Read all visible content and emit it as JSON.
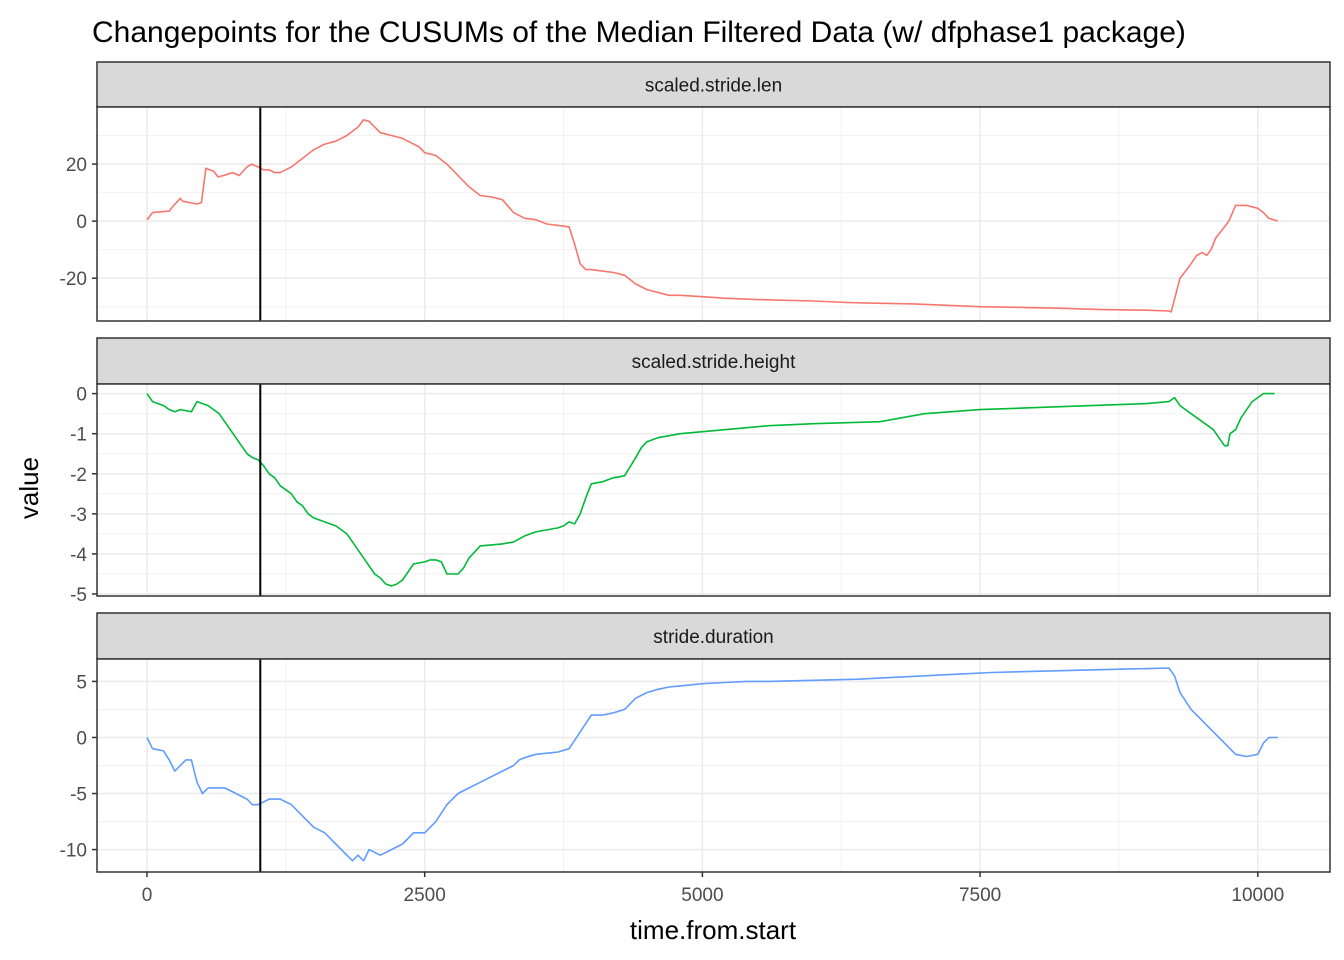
{
  "chart_data": {
    "type": "line",
    "title": "Changepoints for the CUSUMs of the Median Filtered Data (w/ dfphase1 package)",
    "xlabel": "time.from.start",
    "ylabel": "value",
    "x_ticks": [
      0,
      2500,
      5000,
      7500,
      10000
    ],
    "x_tick_labels": [
      "0",
      "2500",
      "5000",
      "7500",
      "10000"
    ],
    "xlim": [
      -450,
      10650
    ],
    "grid": true,
    "legend": "none",
    "changepoint_x": 1020,
    "panels": [
      {
        "strip": "scaled.stride.len",
        "color": "#F8766D",
        "ylim": [
          -35,
          40
        ],
        "y_ticks": [
          -20,
          0,
          20
        ],
        "y_tick_labels": [
          "-20",
          "0",
          "20"
        ],
        "x": [
          0,
          50,
          200,
          230,
          300,
          320,
          450,
          490,
          530,
          600,
          640,
          690,
          770,
          830,
          900,
          940,
          1000,
          1050,
          1100,
          1150,
          1200,
          1300,
          1400,
          1500,
          1600,
          1700,
          1800,
          1900,
          1950,
          2000,
          2100,
          2200,
          2300,
          2400,
          2450,
          2500,
          2600,
          2700,
          2800,
          2900,
          3000,
          3100,
          3200,
          3300,
          3400,
          3500,
          3600,
          3700,
          3800,
          3850,
          3900,
          3950,
          4000,
          4100,
          4200,
          4300,
          4400,
          4500,
          4600,
          4700,
          4800,
          5000,
          5200,
          5500,
          6000,
          6300,
          6600,
          6900,
          7200,
          7500,
          7800,
          8200,
          8600,
          9000,
          9200,
          9220,
          9300,
          9380,
          9450,
          9500,
          9540,
          9580,
          9620,
          9680,
          9740,
          9800,
          9900,
          10000,
          10050,
          10100,
          10180
        ],
        "y": [
          0.5,
          3,
          3.5,
          5,
          8,
          7,
          6,
          6.5,
          18.5,
          17.5,
          15.5,
          16,
          17,
          16,
          19,
          20,
          19,
          18,
          18,
          17,
          17,
          19,
          22,
          25,
          27,
          28,
          30,
          33,
          35.5,
          35,
          31,
          30,
          29,
          27,
          26,
          24,
          23,
          20,
          16,
          12,
          9,
          8.5,
          7.5,
          3,
          1,
          0.5,
          -1,
          -1.5,
          -2,
          -8,
          -15,
          -17,
          -17,
          -17.5,
          -18,
          -19,
          -22,
          -24,
          -25,
          -26,
          -26,
          -26.5,
          -27,
          -27.5,
          -28,
          -28.5,
          -28.8,
          -29,
          -29.5,
          -30,
          -30.2,
          -30.5,
          -31,
          -31.2,
          -31.5,
          -31.8,
          -20,
          -16,
          -12,
          -11,
          -12,
          -10,
          -6,
          -3,
          0,
          5.5,
          5.5,
          4.5,
          3,
          1,
          0
        ]
      },
      {
        "strip": "scaled.stride.height",
        "color": "#00BA38",
        "ylim": [
          -5.05,
          0.24
        ],
        "y_ticks": [
          -5,
          -4,
          -3,
          -2,
          -1,
          0
        ],
        "y_tick_labels": [
          "-5",
          "-4",
          "-3",
          "-2",
          "-1",
          "0"
        ],
        "x": [
          0,
          50,
          100,
          150,
          200,
          250,
          300,
          400,
          450,
          500,
          550,
          600,
          650,
          700,
          750,
          800,
          850,
          900,
          950,
          1000,
          1050,
          1100,
          1150,
          1200,
          1250,
          1300,
          1350,
          1400,
          1450,
          1500,
          1600,
          1700,
          1800,
          1850,
          1900,
          1950,
          2000,
          2050,
          2100,
          2150,
          2200,
          2250,
          2300,
          2400,
          2500,
          2550,
          2600,
          2650,
          2700,
          2800,
          2850,
          2900,
          3000,
          3200,
          3300,
          3400,
          3500,
          3600,
          3700,
          3750,
          3800,
          3850,
          3900,
          3950,
          4000,
          4100,
          4200,
          4300,
          4400,
          4450,
          4500,
          4600,
          4700,
          4800,
          5000,
          5200,
          5400,
          5600,
          6000,
          6600,
          7000,
          7500,
          8000,
          8500,
          9000,
          9200,
          9250,
          9300,
          9400,
          9500,
          9600,
          9650,
          9700,
          9730,
          9750,
          9800,
          9850,
          9900,
          9950,
          10000,
          10050,
          10100,
          10150
        ],
        "y": [
          0,
          -0.2,
          -0.25,
          -0.3,
          -0.4,
          -0.45,
          -0.4,
          -0.45,
          -0.2,
          -0.25,
          -0.3,
          -0.4,
          -0.5,
          -0.7,
          -0.9,
          -1.1,
          -1.3,
          -1.5,
          -1.6,
          -1.65,
          -1.8,
          -2.0,
          -2.1,
          -2.3,
          -2.4,
          -2.5,
          -2.7,
          -2.8,
          -3.0,
          -3.1,
          -3.2,
          -3.3,
          -3.5,
          -3.7,
          -3.9,
          -4.1,
          -4.3,
          -4.5,
          -4.6,
          -4.75,
          -4.8,
          -4.75,
          -4.65,
          -4.25,
          -4.2,
          -4.15,
          -4.15,
          -4.2,
          -4.5,
          -4.5,
          -4.35,
          -4.1,
          -3.8,
          -3.75,
          -3.7,
          -3.55,
          -3.45,
          -3.4,
          -3.35,
          -3.3,
          -3.2,
          -3.25,
          -3.0,
          -2.6,
          -2.25,
          -2.2,
          -2.1,
          -2.05,
          -1.6,
          -1.35,
          -1.2,
          -1.1,
          -1.05,
          -1.0,
          -0.95,
          -0.9,
          -0.85,
          -0.8,
          -0.75,
          -0.7,
          -0.5,
          -0.4,
          -0.35,
          -0.3,
          -0.25,
          -0.2,
          -0.1,
          -0.3,
          -0.5,
          -0.7,
          -0.9,
          -1.1,
          -1.3,
          -1.3,
          -1.0,
          -0.9,
          -0.6,
          -0.4,
          -0.2,
          -0.1,
          0,
          0,
          0
        ]
      },
      {
        "strip": "stride.duration",
        "color": "#619CFF",
        "ylim": [
          -12,
          7
        ],
        "y_ticks": [
          -10,
          -5,
          0,
          5
        ],
        "y_tick_labels": [
          "-10",
          "-5",
          "0",
          "5"
        ],
        "x": [
          0,
          50,
          150,
          200,
          250,
          300,
          350,
          400,
          450,
          500,
          550,
          600,
          700,
          800,
          900,
          950,
          1000,
          1100,
          1200,
          1300,
          1400,
          1500,
          1600,
          1700,
          1800,
          1850,
          1900,
          1950,
          2000,
          2100,
          2200,
          2300,
          2400,
          2500,
          2600,
          2700,
          2800,
          2900,
          3000,
          3100,
          3200,
          3300,
          3350,
          3400,
          3500,
          3600,
          3700,
          3800,
          3900,
          4000,
          4100,
          4200,
          4300,
          4400,
          4500,
          4600,
          4700,
          4800,
          5000,
          5200,
          5400,
          5600,
          6000,
          6400,
          6800,
          7200,
          7600,
          8000,
          8400,
          8800,
          9200,
          9250,
          9300,
          9400,
          9500,
          9600,
          9700,
          9750,
          9800,
          9900,
          10000,
          10050,
          10100,
          10180
        ],
        "y": [
          0,
          -1,
          -1.2,
          -2,
          -3,
          -2.5,
          -2,
          -2,
          -4,
          -5,
          -4.5,
          -4.5,
          -4.5,
          -5,
          -5.5,
          -6,
          -6,
          -5.5,
          -5.5,
          -6,
          -7,
          -8,
          -8.5,
          -9.5,
          -10.5,
          -11,
          -10.5,
          -11,
          -10,
          -10.5,
          -10,
          -9.5,
          -8.5,
          -8.5,
          -7.5,
          -6,
          -5,
          -4.5,
          -4,
          -3.5,
          -3,
          -2.5,
          -2,
          -1.8,
          -1.5,
          -1.4,
          -1.3,
          -1,
          0.5,
          2,
          2,
          2.2,
          2.5,
          3.5,
          4,
          4.3,
          4.5,
          4.6,
          4.8,
          4.9,
          5,
          5,
          5.1,
          5.2,
          5.4,
          5.6,
          5.8,
          5.9,
          6,
          6.1,
          6.2,
          5.5,
          4,
          2.5,
          1.5,
          0.5,
          -0.5,
          -1,
          -1.5,
          -1.7,
          -1.5,
          -0.5,
          0,
          0
        ]
      }
    ]
  }
}
